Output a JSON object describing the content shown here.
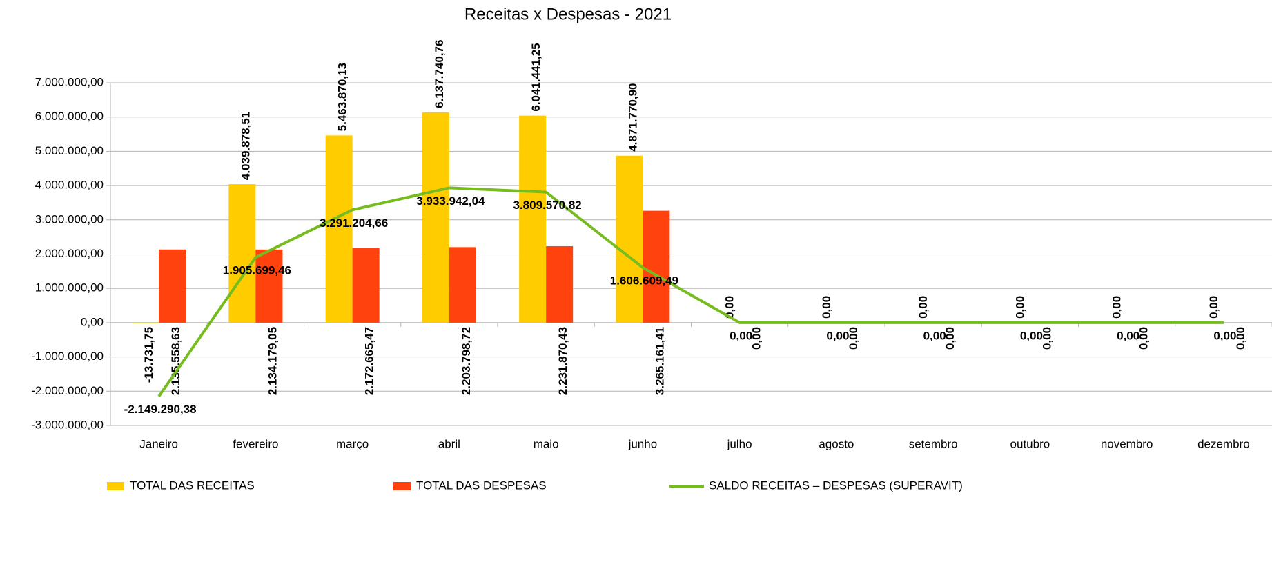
{
  "chart_data": {
    "type": "bar_line",
    "title": "Receitas x Despesas - 2021",
    "categories": [
      "Janeiro",
      "fevereiro",
      "março",
      "abril",
      "maio",
      "junho",
      "julho",
      "agosto",
      "setembro",
      "outubro",
      "novembro",
      "dezembro"
    ],
    "series": [
      {
        "name": "TOTAL DAS RECEITAS",
        "type": "bar",
        "color": "#ffcc00",
        "values": [
          -13731.75,
          4039878.51,
          5463870.13,
          6137740.76,
          6041441.25,
          4871770.9,
          0,
          0,
          0,
          0,
          0,
          0
        ],
        "value_labels": [
          "-13.731,75",
          "4.039.878,51",
          "5.463.870,13",
          "6.137.740,76",
          "6.041.441,25",
          "4.871.770,90",
          "0,00",
          "0,00",
          "0,00",
          "0,00",
          "0,00",
          "0,00"
        ]
      },
      {
        "name": "TOTAL DAS DESPESAS",
        "type": "bar",
        "color": "#ff420e",
        "values": [
          2135558.63,
          2134179.05,
          2172665.47,
          2203798.72,
          2231870.43,
          3265161.41,
          0,
          0,
          0,
          0,
          0,
          0
        ],
        "value_labels": [
          "2.135.558,63",
          "2.134.179,05",
          "2.172.665,47",
          "2.203.798,72",
          "2.231.870,43",
          "3.265.161,41",
          "0,00",
          "0,00",
          "0,00",
          "0,00",
          "0,00",
          "0,00"
        ]
      },
      {
        "name": "SALDO RECEITAS – DESPESAS (SUPERAVIT)",
        "type": "line",
        "color": "#77bc1f",
        "values": [
          -2149290.38,
          1905699.46,
          3291204.66,
          3933942.04,
          3809570.82,
          1606609.49,
          0,
          0,
          0,
          0,
          0,
          0
        ],
        "value_labels": [
          "-2.149.290,38",
          "1.905.699,46",
          "3.291.204,66",
          "3.933.942,04",
          "3.809.570,82",
          "1.606.609,49",
          "0,00",
          "0,00",
          "0,00",
          "0,00",
          "0,00",
          "0,00"
        ]
      }
    ],
    "ylim": [
      -3000000,
      7000000
    ],
    "yticks": [
      {
        "value": -3000000,
        "label": "-3.000.000,00"
      },
      {
        "value": -2000000,
        "label": "-2.000.000,00"
      },
      {
        "value": -1000000,
        "label": "-1.000.000,00"
      },
      {
        "value": 0,
        "label": "0,00"
      },
      {
        "value": 1000000,
        "label": "1.000.000,00"
      },
      {
        "value": 2000000,
        "label": "2.000.000,00"
      },
      {
        "value": 3000000,
        "label": "3.000.000,00"
      },
      {
        "value": 4000000,
        "label": "4.000.000,00"
      },
      {
        "value": 5000000,
        "label": "5.000.000,00"
      },
      {
        "value": 6000000,
        "label": "6.000.000,00"
      },
      {
        "value": 7000000,
        "label": "7.000.000,00"
      }
    ],
    "grid": true,
    "legend": "bottom"
  }
}
